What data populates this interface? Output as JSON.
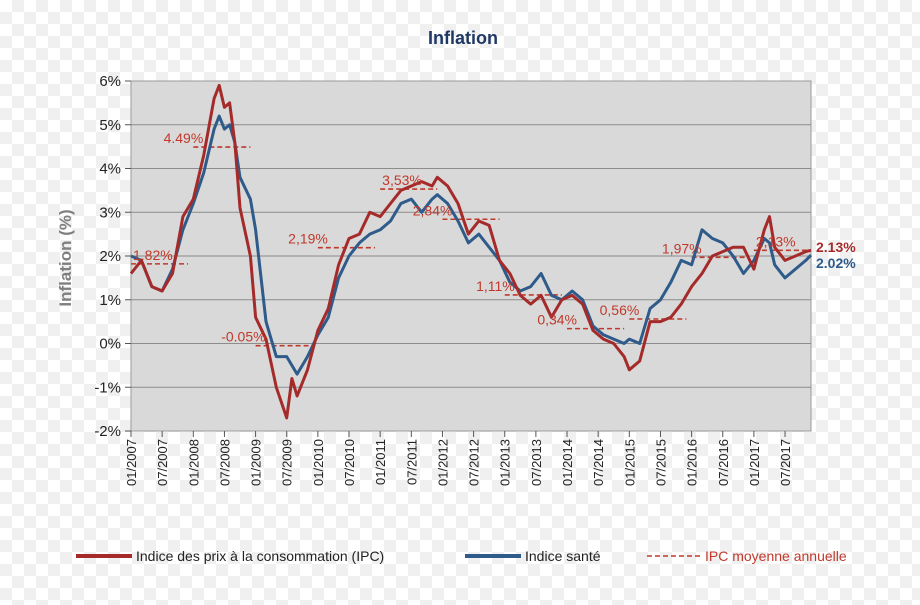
{
  "chart_data": {
    "type": "line",
    "title": "Inflation",
    "ylabel": "Inflation (%)",
    "ylim": [
      -2,
      6
    ],
    "yticks": [
      "-2%",
      "-1%",
      "0%",
      "1%",
      "2%",
      "3%",
      "4%",
      "5%",
      "6%"
    ],
    "xlim": [
      "2007-01",
      "2017-12"
    ],
    "xticks": [
      "01/2007",
      "07/2007",
      "01/2008",
      "07/2008",
      "01/2009",
      "07/2009",
      "01/2010",
      "07/2010",
      "01/2011",
      "07/2011",
      "01/2012",
      "07/2012",
      "01/2013",
      "07/2013",
      "01/2014",
      "07/2014",
      "01/2015",
      "07/2015",
      "01/2016",
      "07/2016",
      "01/2017",
      "07/2017"
    ],
    "grid": true,
    "legend_placement": "bottom",
    "series": [
      {
        "name": "Indice des prix à la consommation (IPC)",
        "color": "#a52a2a",
        "points": [
          [
            "2007-01",
            1.6
          ],
          [
            "2007-03",
            1.9
          ],
          [
            "2007-05",
            1.3
          ],
          [
            "2007-07",
            1.2
          ],
          [
            "2007-09",
            1.6
          ],
          [
            "2007-11",
            2.9
          ],
          [
            "2008-01",
            3.3
          ],
          [
            "2008-03",
            4.3
          ],
          [
            "2008-05",
            5.6
          ],
          [
            "2008-06",
            5.9
          ],
          [
            "2008-07",
            5.4
          ],
          [
            "2008-08",
            5.5
          ],
          [
            "2008-09",
            4.6
          ],
          [
            "2008-10",
            3.1
          ],
          [
            "2008-12",
            2.0
          ],
          [
            "2009-01",
            0.6
          ],
          [
            "2009-03",
            0.1
          ],
          [
            "2009-05",
            -1.0
          ],
          [
            "2009-07",
            -1.7
          ],
          [
            "2009-08",
            -0.8
          ],
          [
            "2009-09",
            -1.2
          ],
          [
            "2009-11",
            -0.6
          ],
          [
            "2010-01",
            0.3
          ],
          [
            "2010-03",
            0.8
          ],
          [
            "2010-05",
            1.8
          ],
          [
            "2010-07",
            2.4
          ],
          [
            "2010-09",
            2.5
          ],
          [
            "2010-11",
            3.0
          ],
          [
            "2011-01",
            2.9
          ],
          [
            "2011-03",
            3.2
          ],
          [
            "2011-05",
            3.5
          ],
          [
            "2011-07",
            3.6
          ],
          [
            "2011-09",
            3.7
          ],
          [
            "2011-11",
            3.6
          ],
          [
            "2011-12",
            3.8
          ],
          [
            "2012-02",
            3.6
          ],
          [
            "2012-04",
            3.2
          ],
          [
            "2012-06",
            2.5
          ],
          [
            "2012-08",
            2.8
          ],
          [
            "2012-10",
            2.7
          ],
          [
            "2012-12",
            1.9
          ],
          [
            "2013-02",
            1.6
          ],
          [
            "2013-04",
            1.1
          ],
          [
            "2013-06",
            0.9
          ],
          [
            "2013-08",
            1.1
          ],
          [
            "2013-10",
            0.6
          ],
          [
            "2013-12",
            1.0
          ],
          [
            "2014-02",
            1.1
          ],
          [
            "2014-04",
            0.9
          ],
          [
            "2014-06",
            0.3
          ],
          [
            "2014-08",
            0.1
          ],
          [
            "2014-10",
            0.0
          ],
          [
            "2014-12",
            -0.3
          ],
          [
            "2015-01",
            -0.6
          ],
          [
            "2015-03",
            -0.4
          ],
          [
            "2015-05",
            0.5
          ],
          [
            "2015-07",
            0.5
          ],
          [
            "2015-09",
            0.6
          ],
          [
            "2015-11",
            0.9
          ],
          [
            "2016-01",
            1.3
          ],
          [
            "2016-03",
            1.6
          ],
          [
            "2016-05",
            2.0
          ],
          [
            "2016-07",
            2.1
          ],
          [
            "2016-09",
            2.2
          ],
          [
            "2016-11",
            2.2
          ],
          [
            "2017-01",
            1.7
          ],
          [
            "2017-03",
            2.6
          ],
          [
            "2017-04",
            2.9
          ],
          [
            "2017-05",
            2.2
          ],
          [
            "2017-07",
            1.9
          ],
          [
            "2017-09",
            2.0
          ],
          [
            "2017-11",
            2.1
          ],
          [
            "2017-12",
            2.13
          ]
        ]
      },
      {
        "name": "Indice santé",
        "color": "#2e5b8a",
        "points": [
          [
            "2007-01",
            2.0
          ],
          [
            "2007-03",
            1.9
          ],
          [
            "2007-05",
            1.3
          ],
          [
            "2007-07",
            1.2
          ],
          [
            "2007-09",
            1.7
          ],
          [
            "2007-11",
            2.6
          ],
          [
            "2008-01",
            3.2
          ],
          [
            "2008-03",
            3.9
          ],
          [
            "2008-05",
            4.9
          ],
          [
            "2008-06",
            5.2
          ],
          [
            "2008-07",
            4.9
          ],
          [
            "2008-08",
            5.0
          ],
          [
            "2008-09",
            4.6
          ],
          [
            "2008-10",
            3.8
          ],
          [
            "2008-12",
            3.3
          ],
          [
            "2009-01",
            2.6
          ],
          [
            "2009-03",
            0.5
          ],
          [
            "2009-05",
            -0.3
          ],
          [
            "2009-07",
            -0.3
          ],
          [
            "2009-09",
            -0.7
          ],
          [
            "2009-11",
            -0.3
          ],
          [
            "2010-01",
            0.2
          ],
          [
            "2010-03",
            0.6
          ],
          [
            "2010-05",
            1.5
          ],
          [
            "2010-07",
            2.0
          ],
          [
            "2010-09",
            2.3
          ],
          [
            "2010-11",
            2.5
          ],
          [
            "2011-01",
            2.6
          ],
          [
            "2011-03",
            2.8
          ],
          [
            "2011-05",
            3.2
          ],
          [
            "2011-07",
            3.3
          ],
          [
            "2011-09",
            3.0
          ],
          [
            "2011-11",
            3.3
          ],
          [
            "2011-12",
            3.4
          ],
          [
            "2012-02",
            3.2
          ],
          [
            "2012-04",
            2.8
          ],
          [
            "2012-06",
            2.3
          ],
          [
            "2012-08",
            2.5
          ],
          [
            "2012-10",
            2.2
          ],
          [
            "2012-12",
            1.9
          ],
          [
            "2013-02",
            1.4
          ],
          [
            "2013-04",
            1.2
          ],
          [
            "2013-06",
            1.3
          ],
          [
            "2013-08",
            1.6
          ],
          [
            "2013-10",
            1.1
          ],
          [
            "2013-12",
            1.0
          ],
          [
            "2014-02",
            1.2
          ],
          [
            "2014-04",
            1.0
          ],
          [
            "2014-06",
            0.4
          ],
          [
            "2014-08",
            0.2
          ],
          [
            "2014-10",
            0.1
          ],
          [
            "2014-12",
            0.0
          ],
          [
            "2015-01",
            0.1
          ],
          [
            "2015-03",
            0.0
          ],
          [
            "2015-05",
            0.8
          ],
          [
            "2015-07",
            1.0
          ],
          [
            "2015-09",
            1.4
          ],
          [
            "2015-11",
            1.9
          ],
          [
            "2016-01",
            1.8
          ],
          [
            "2016-03",
            2.6
          ],
          [
            "2016-05",
            2.4
          ],
          [
            "2016-07",
            2.3
          ],
          [
            "2016-09",
            2.0
          ],
          [
            "2016-11",
            1.6
          ],
          [
            "2017-01",
            1.9
          ],
          [
            "2017-03",
            2.4
          ],
          [
            "2017-04",
            2.3
          ],
          [
            "2017-05",
            1.8
          ],
          [
            "2017-07",
            1.5
          ],
          [
            "2017-09",
            1.7
          ],
          [
            "2017-11",
            1.9
          ],
          [
            "2017-12",
            2.02
          ]
        ]
      },
      {
        "name": "IPC moyenne annuelle",
        "color": "#c0392b",
        "style": "dashed",
        "annual_means": [
          {
            "year": 2007,
            "value": 1.82,
            "label": "1.82%"
          },
          {
            "year": 2008,
            "value": 4.49,
            "label": "4.49%"
          },
          {
            "year": 2009,
            "value": -0.05,
            "label": "-0.05%"
          },
          {
            "year": 2010,
            "value": 2.19,
            "label": "2,19%"
          },
          {
            "year": 2011,
            "value": 3.53,
            "label": "3,53%"
          },
          {
            "year": 2012,
            "value": 2.84,
            "label": "2,84%"
          },
          {
            "year": 2013,
            "value": 1.11,
            "label": "1,11%"
          },
          {
            "year": 2014,
            "value": 0.34,
            "label": "0,34%"
          },
          {
            "year": 2015,
            "value": 0.56,
            "label": "0,56%"
          },
          {
            "year": 2016,
            "value": 1.97,
            "label": "1,97%"
          },
          {
            "year": 2017,
            "value": 2.13,
            "label": "2,13%"
          }
        ]
      }
    ],
    "end_labels": [
      {
        "text": "2.13%",
        "color": "#a52a2a"
      },
      {
        "text": "2.02%",
        "color": "#2e5b8a"
      }
    ]
  }
}
